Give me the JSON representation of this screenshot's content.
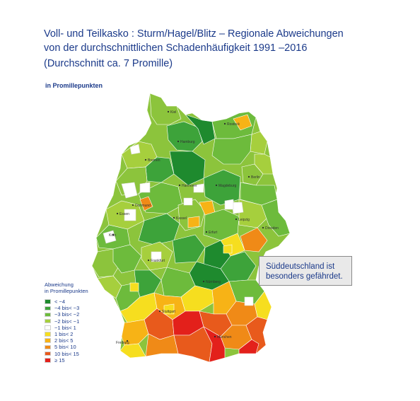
{
  "title": {
    "line1": "Voll- und Teilkasko : Sturm/Hagel/Blitz – Regionale Abweichungen",
    "line2": "von der durchschnittlichen Schadenhäufigkeit 1991  –2016"
  },
  "subtitle": "(Durchschnitt ca. 7 Promille)",
  "unit_label": "in Promillepunkten",
  "legend": {
    "title1": "Abweichung",
    "title2": "in Promillepunkten",
    "items": [
      {
        "label": "< −4",
        "color": "#1e8a2e"
      },
      {
        "label": "−4 bis< −3",
        "color": "#3da33a"
      },
      {
        "label": "−3 bis< −2",
        "color": "#6dbb3c"
      },
      {
        "label": "−2 bis< −1",
        "color": "#a6cf3d"
      },
      {
        "label": "−1 bis< 1",
        "color": "#ffffff"
      },
      {
        "label": "1 bis< 2",
        "color": "#f6de1f"
      },
      {
        "label": "2 bis< 5",
        "color": "#f7b316"
      },
      {
        "label": "5 bis< 10",
        "color": "#f08a17"
      },
      {
        "label": "10 bis< 15",
        "color": "#e85a1c"
      },
      {
        "label": "≥ 15",
        "color": "#e3201b"
      }
    ]
  },
  "callout": {
    "line1": "Süddeutschland ist",
    "line2": "besonders gefährdet."
  },
  "cities": {
    "kiel": "Kiel",
    "hamburg": "Hamburg",
    "bremen": "Bremen",
    "rostock": "Rostock",
    "hannover": "Hannover",
    "berlin": "Berlin",
    "magdeburg": "Magdeburg",
    "dortmund": "Dortmund",
    "essen": "Essen",
    "koeln": "Köln",
    "kassel": "Kassel",
    "erfurt": "Erfurt",
    "leipzig": "Leipzig",
    "dresden": "Dresden",
    "frankfurt": "Frankfurt",
    "nuernberg": "Nürnberg",
    "stuttgart": "Stuttgart",
    "freiburg": "Freiburg",
    "muenchen": "München"
  }
}
